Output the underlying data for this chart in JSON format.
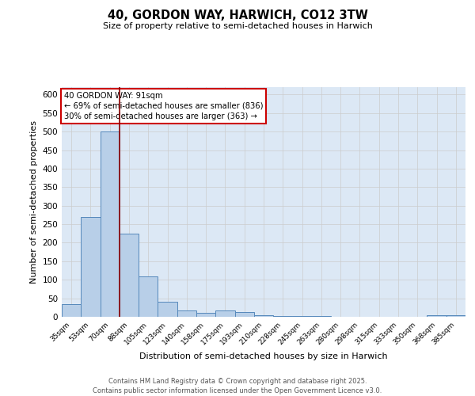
{
  "title_line1": "40, GORDON WAY, HARWICH, CO12 3TW",
  "title_line2": "Size of property relative to semi-detached houses in Harwich",
  "xlabel": "Distribution of semi-detached houses by size in Harwich",
  "ylabel": "Number of semi-detached properties",
  "categories": [
    "35sqm",
    "53sqm",
    "70sqm",
    "88sqm",
    "105sqm",
    "123sqm",
    "140sqm",
    "158sqm",
    "175sqm",
    "193sqm",
    "210sqm",
    "228sqm",
    "245sqm",
    "263sqm",
    "280sqm",
    "298sqm",
    "315sqm",
    "333sqm",
    "350sqm",
    "368sqm",
    "385sqm"
  ],
  "values": [
    35,
    270,
    500,
    225,
    110,
    40,
    18,
    10,
    17,
    12,
    5,
    3,
    3,
    3,
    0,
    0,
    0,
    0,
    0,
    5,
    4
  ],
  "bar_color": "#b8cfe8",
  "bar_edge_color": "#5588bb",
  "grid_color": "#cccccc",
  "bg_color": "#dce8f5",
  "vline_color": "#8b0000",
  "vline_pos": 2.5,
  "annotation_text": "40 GORDON WAY: 91sqm\n← 69% of semi-detached houses are smaller (836)\n30% of semi-detached houses are larger (363) →",
  "annotation_box_color": "#cc0000",
  "footer_line1": "Contains HM Land Registry data © Crown copyright and database right 2025.",
  "footer_line2": "Contains public sector information licensed under the Open Government Licence v3.0.",
  "ylim": [
    0,
    620
  ],
  "yticks": [
    0,
    50,
    100,
    150,
    200,
    250,
    300,
    350,
    400,
    450,
    500,
    550,
    600
  ]
}
